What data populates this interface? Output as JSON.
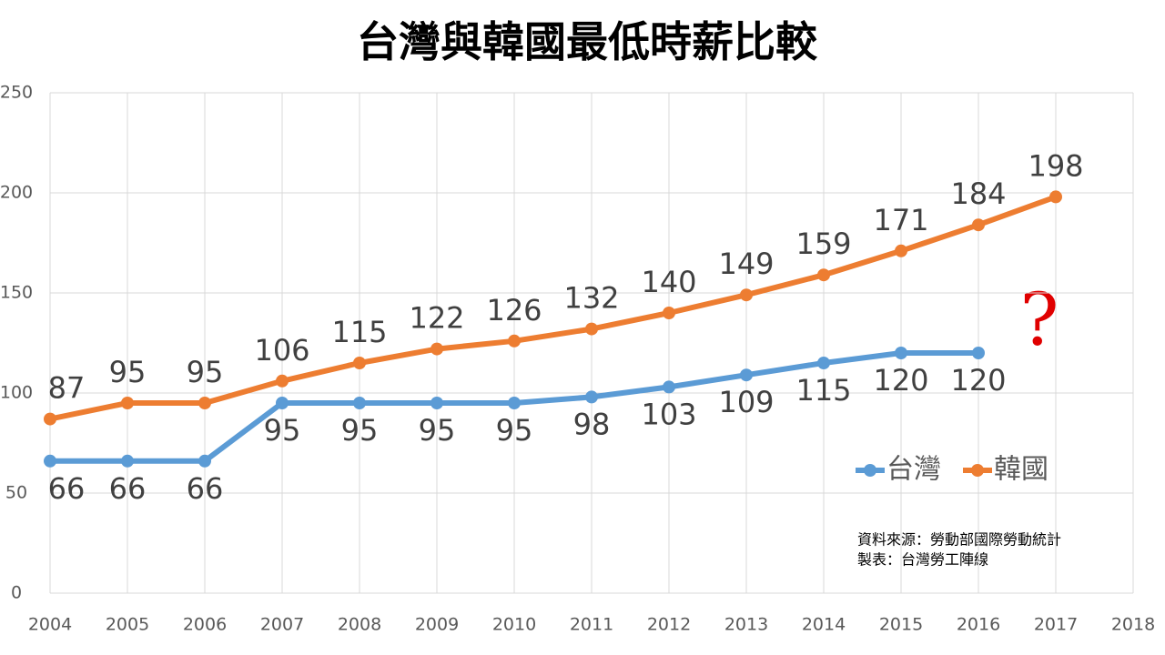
{
  "chart_data": {
    "type": "line",
    "title": "台灣與韓國最低時薪比較",
    "x": [
      2004,
      2005,
      2006,
      2007,
      2008,
      2009,
      2010,
      2011,
      2012,
      2013,
      2014,
      2015,
      2016,
      2017
    ],
    "series": [
      {
        "name": "台灣",
        "color": "#5b9bd5",
        "values": [
          66,
          66,
          66,
          95,
          95,
          95,
          95,
          98,
          103,
          109,
          115,
          120,
          120,
          null
        ]
      },
      {
        "name": "韓國",
        "color": "#ed7d31",
        "values": [
          87,
          95,
          95,
          106,
          115,
          122,
          126,
          132,
          140,
          149,
          159,
          171,
          184,
          198
        ]
      }
    ],
    "xlim": [
      2004,
      2018
    ],
    "xticks": [
      2004,
      2005,
      2006,
      2007,
      2008,
      2009,
      2010,
      2011,
      2012,
      2013,
      2014,
      2015,
      2016,
      2017,
      2018
    ],
    "ylim": [
      0,
      250
    ],
    "yticks": [
      0,
      50,
      100,
      150,
      200,
      250
    ],
    "grid": true,
    "annotations": [
      "?",
      "資料來源：勞動部國際勞動統計",
      "製表：台灣勞工陣線"
    ]
  }
}
